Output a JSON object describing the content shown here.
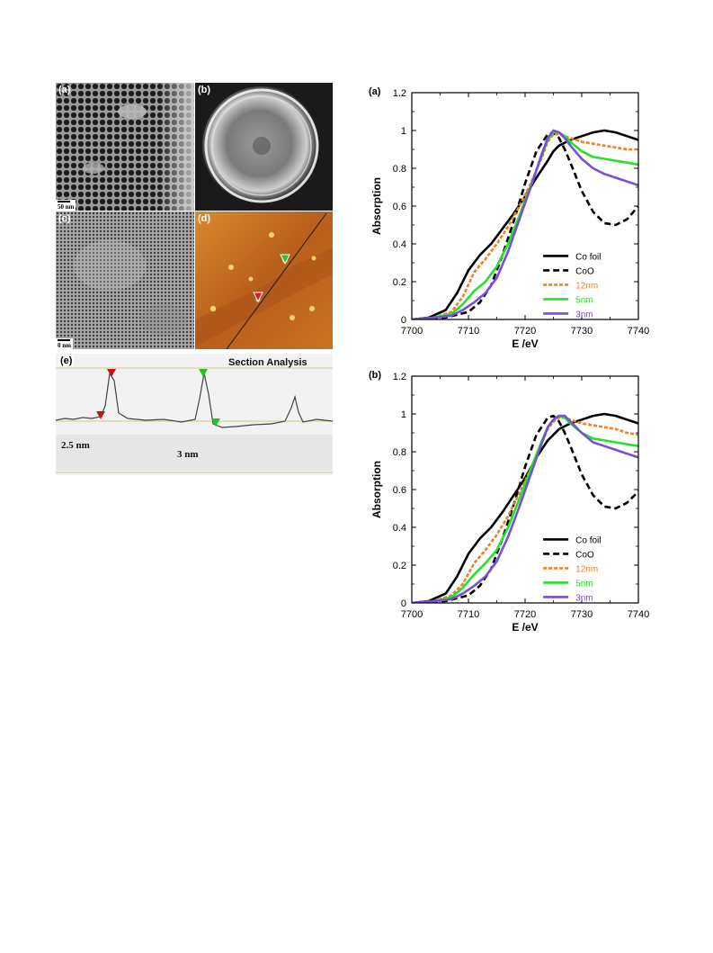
{
  "figure_left": {
    "panels": [
      {
        "letter": "(a)",
        "scale": "50 nm"
      },
      {
        "letter": "(b)"
      },
      {
        "letter": "(c)",
        "scale": "0 nm"
      },
      {
        "letter": "(d)"
      }
    ],
    "section": {
      "letter": "(e)",
      "title": "Section Analysis",
      "height_left": "2.5 nm",
      "height_right": "3 nm"
    }
  },
  "chart_data": [
    {
      "type": "line",
      "panel": "(a)",
      "xlabel": "E /eV",
      "ylabel": "Absorption",
      "xlim": [
        7700,
        7740
      ],
      "ylim": [
        0,
        1.2
      ],
      "xticks": [
        "7700",
        "7710",
        "7720",
        "7730",
        "7740"
      ],
      "yticks": [
        "0",
        "0.2",
        "0.4",
        "0.6",
        "0.8",
        "1",
        "1.2"
      ],
      "legend_position": "bottom-right",
      "series": [
        {
          "name": "Co foil",
          "color": "#000000",
          "dash": "solid",
          "x": [
            7700,
            7703,
            7706,
            7708,
            7710,
            7712,
            7714,
            7716,
            7718,
            7720,
            7722,
            7724,
            7725,
            7726,
            7728,
            7730,
            7732,
            7734,
            7736,
            7738,
            7740
          ],
          "y": [
            0.0,
            0.01,
            0.05,
            0.14,
            0.26,
            0.34,
            0.4,
            0.48,
            0.56,
            0.65,
            0.75,
            0.84,
            0.89,
            0.92,
            0.95,
            0.97,
            0.99,
            1.0,
            0.99,
            0.97,
            0.95
          ]
        },
        {
          "name": "CoO",
          "color": "#000000",
          "dash": "dashed",
          "x": [
            7700,
            7706,
            7710,
            7712,
            7714,
            7716,
            7718,
            7720,
            7722,
            7724,
            7725,
            7726,
            7727,
            7728,
            7730,
            7732,
            7734,
            7736,
            7738,
            7740
          ],
          "y": [
            0.0,
            0.01,
            0.04,
            0.09,
            0.18,
            0.34,
            0.52,
            0.72,
            0.89,
            0.98,
            0.99,
            0.96,
            0.9,
            0.83,
            0.68,
            0.57,
            0.51,
            0.5,
            0.53,
            0.6
          ]
        },
        {
          "name": "12nm",
          "color": "#f07f25",
          "dash": "dashed",
          "x": [
            7700,
            7704,
            7707,
            7709,
            7711,
            7713,
            7715,
            7717,
            7719,
            7721,
            7723,
            7724,
            7725,
            7726,
            7728,
            7730,
            7732,
            7734,
            7736,
            7738,
            7740
          ],
          "y": [
            0.0,
            0.01,
            0.04,
            0.12,
            0.25,
            0.32,
            0.4,
            0.49,
            0.6,
            0.72,
            0.86,
            0.94,
            0.98,
            0.98,
            0.96,
            0.94,
            0.93,
            0.92,
            0.91,
            0.9,
            0.9
          ]
        },
        {
          "name": "5nm",
          "color": "#22e22a",
          "dash": "solid",
          "x": [
            7700,
            7704,
            7707,
            7709,
            7711,
            7713,
            7715,
            7717,
            7719,
            7721,
            7723,
            7724,
            7725,
            7726,
            7727,
            7728,
            7730,
            7732,
            7734,
            7736,
            7738,
            7740
          ],
          "y": [
            0.0,
            0.01,
            0.03,
            0.08,
            0.15,
            0.2,
            0.28,
            0.4,
            0.55,
            0.71,
            0.87,
            0.95,
            0.99,
            0.99,
            0.97,
            0.94,
            0.89,
            0.86,
            0.85,
            0.84,
            0.83,
            0.82
          ]
        },
        {
          "name": "3nm",
          "color": "#7a4fd6",
          "dash": "solid",
          "x": [
            7700,
            7704,
            7707,
            7709,
            7711,
            7713,
            7715,
            7717,
            7719,
            7721,
            7723,
            7724,
            7725,
            7726,
            7727,
            7728,
            7730,
            7732,
            7734,
            7736,
            7738,
            7740
          ],
          "y": [
            0.0,
            0.01,
            0.02,
            0.05,
            0.09,
            0.14,
            0.22,
            0.36,
            0.53,
            0.7,
            0.88,
            0.96,
            1.0,
            0.99,
            0.96,
            0.92,
            0.85,
            0.8,
            0.77,
            0.75,
            0.73,
            0.71
          ]
        }
      ]
    },
    {
      "type": "line",
      "panel": "(b)",
      "xlabel": "E /eV",
      "ylabel": "Absorption",
      "xlim": [
        7700,
        7740
      ],
      "ylim": [
        0,
        1.2
      ],
      "xticks": [
        "7700",
        "7710",
        "7720",
        "7730",
        "7740"
      ],
      "yticks": [
        "0",
        "0.2",
        "0.4",
        "0.6",
        "0.8",
        "1",
        "1.2"
      ],
      "legend_position": "bottom-right",
      "series": [
        {
          "name": "Co foil",
          "color": "#000000",
          "dash": "solid",
          "x": [
            7700,
            7703,
            7706,
            7708,
            7710,
            7712,
            7714,
            7716,
            7718,
            7720,
            7722,
            7724,
            7726,
            7728,
            7730,
            7732,
            7734,
            7736,
            7738,
            7740
          ],
          "y": [
            0.0,
            0.01,
            0.05,
            0.14,
            0.26,
            0.34,
            0.4,
            0.48,
            0.57,
            0.66,
            0.77,
            0.86,
            0.92,
            0.95,
            0.97,
            0.99,
            1.0,
            0.99,
            0.97,
            0.95
          ]
        },
        {
          "name": "CoO",
          "color": "#000000",
          "dash": "dashed",
          "x": [
            7700,
            7706,
            7710,
            7712,
            7714,
            7716,
            7718,
            7720,
            7722,
            7724,
            7725,
            7726,
            7727,
            7728,
            7730,
            7732,
            7734,
            7736,
            7738,
            7740
          ],
          "y": [
            0.0,
            0.01,
            0.04,
            0.09,
            0.18,
            0.34,
            0.52,
            0.72,
            0.89,
            0.98,
            0.99,
            0.96,
            0.9,
            0.83,
            0.68,
            0.57,
            0.51,
            0.5,
            0.53,
            0.59
          ]
        },
        {
          "name": "12nm",
          "color": "#f07f25",
          "dash": "dashed",
          "x": [
            7700,
            7704,
            7707,
            7709,
            7711,
            7713,
            7715,
            7717,
            7719,
            7721,
            7723,
            7724,
            7725,
            7726,
            7727,
            7728,
            7730,
            7732,
            7734,
            7736,
            7738,
            7740
          ],
          "y": [
            0.0,
            0.01,
            0.04,
            0.1,
            0.21,
            0.28,
            0.36,
            0.46,
            0.58,
            0.71,
            0.85,
            0.92,
            0.96,
            0.98,
            0.98,
            0.97,
            0.95,
            0.94,
            0.93,
            0.92,
            0.9,
            0.89
          ]
        },
        {
          "name": "5nm",
          "color": "#22e22a",
          "dash": "solid",
          "x": [
            7700,
            7704,
            7707,
            7709,
            7711,
            7713,
            7715,
            7717,
            7719,
            7721,
            7723,
            7724,
            7725,
            7726,
            7727,
            7728,
            7730,
            7732,
            7734,
            7736,
            7738,
            7740
          ],
          "y": [
            0.0,
            0.01,
            0.03,
            0.08,
            0.15,
            0.21,
            0.28,
            0.4,
            0.55,
            0.71,
            0.86,
            0.93,
            0.97,
            0.99,
            0.98,
            0.95,
            0.9,
            0.87,
            0.86,
            0.85,
            0.84,
            0.83
          ]
        },
        {
          "name": "3nm",
          "color": "#7a4fd6",
          "dash": "solid",
          "x": [
            7700,
            7704,
            7707,
            7709,
            7711,
            7713,
            7715,
            7717,
            7719,
            7721,
            7723,
            7724,
            7725,
            7726,
            7727,
            7728,
            7730,
            7732,
            7734,
            7736,
            7738,
            7740
          ],
          "y": [
            0.0,
            0.01,
            0.02,
            0.05,
            0.09,
            0.14,
            0.22,
            0.35,
            0.51,
            0.68,
            0.85,
            0.93,
            0.97,
            0.99,
            0.99,
            0.96,
            0.9,
            0.85,
            0.83,
            0.81,
            0.79,
            0.77
          ]
        }
      ]
    }
  ]
}
